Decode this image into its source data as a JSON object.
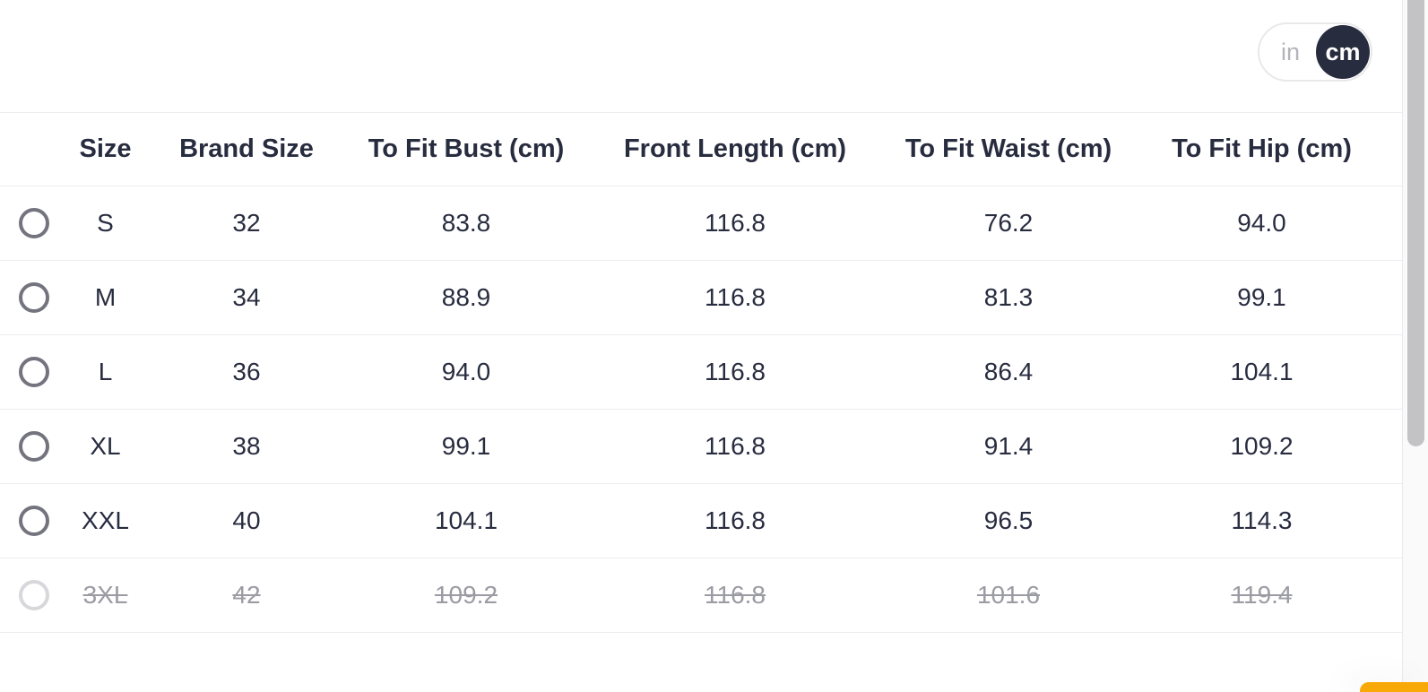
{
  "unit_toggle": {
    "in_label": "in",
    "cm_label": "cm",
    "selected": "cm"
  },
  "table": {
    "columns": [
      "Size",
      "Brand Size",
      "To Fit Bust (cm)",
      "Front Length (cm)",
      "To Fit Waist (cm)",
      "To Fit Hip (cm)"
    ],
    "rows": [
      {
        "size": "S",
        "brand_size": "32",
        "bust": "83.8",
        "front_length": "116.8",
        "waist": "76.2",
        "hip": "94.0",
        "available": true
      },
      {
        "size": "M",
        "brand_size": "34",
        "bust": "88.9",
        "front_length": "116.8",
        "waist": "81.3",
        "hip": "99.1",
        "available": true
      },
      {
        "size": "L",
        "brand_size": "36",
        "bust": "94.0",
        "front_length": "116.8",
        "waist": "86.4",
        "hip": "104.1",
        "available": true
      },
      {
        "size": "XL",
        "brand_size": "38",
        "bust": "99.1",
        "front_length": "116.8",
        "waist": "91.4",
        "hip": "109.2",
        "available": true
      },
      {
        "size": "XXL",
        "brand_size": "40",
        "bust": "104.1",
        "front_length": "116.8",
        "waist": "96.5",
        "hip": "114.3",
        "available": true
      },
      {
        "size": "3XL",
        "brand_size": "42",
        "bust": "109.2",
        "front_length": "116.8",
        "waist": "101.6",
        "hip": "119.4",
        "available": false
      }
    ]
  },
  "colors": {
    "text": "#282c3f",
    "disabled_text": "#9b9ba3",
    "toggle_active_bg": "#282c3f",
    "toggle_active_text": "#ffffff",
    "toggle_inactive_text": "#b3b3bb",
    "row_border": "#ededf0",
    "radio_border": "#74747f",
    "radio_disabled_border": "#d8d8dc",
    "accent_orange": "#f8a908",
    "scrollbar_thumb": "#c3c3c6"
  }
}
